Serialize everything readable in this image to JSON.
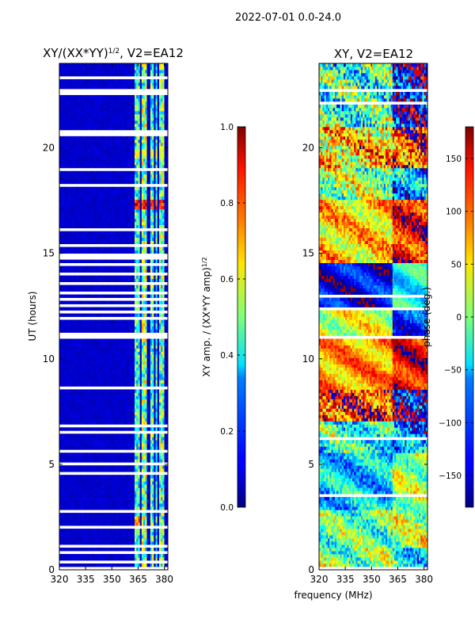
{
  "suptitle": "2022-07-01 0.0-24.0",
  "xlabel": "frequency (MHz)",
  "ylabel": "UT (hours)",
  "left_panel": {
    "title_main": "XY/(XX*YY)",
    "title_sup": "1/2",
    "title_tail": ", V2=EA12"
  },
  "right_panel": {
    "title": "XY, V2=EA12"
  },
  "colorbar_amp": {
    "label_main": "XY amp. / (XX*YY amp)",
    "label_sup": "1/2"
  },
  "colorbar_phase": {
    "label": "phase (deg.)"
  },
  "colors": {
    "jet_low": "#00007f",
    "jet_high": "#7f0000",
    "gap": "#ffffff"
  },
  "chart_data": [
    {
      "type": "heatmap",
      "name": "amplitude-ratio",
      "title": "XY/(XX*YY)^1/2, V2=EA12",
      "xlabel": "",
      "ylabel": "UT (hours)",
      "xlim": [
        320,
        382
      ],
      "ylim": [
        0,
        24
      ],
      "x_ticks": [
        320,
        335,
        350,
        365,
        380
      ],
      "y_ticks": [
        0,
        5,
        10,
        15,
        20
      ],
      "colorbar": {
        "label": "XY amp. / (XX*YY amp)^1/2",
        "range": [
          0.0,
          1.0
        ],
        "ticks": [
          0.0,
          0.2,
          0.4,
          0.6,
          0.8,
          1.0
        ],
        "tick_labels": [
          "0.0",
          "0.2",
          "0.4",
          "0.6",
          "0.8",
          "1.0"
        ]
      },
      "colormap": "jet",
      "background_value": 0.05,
      "channel_bands_mhz": [
        {
          "from": 363.5,
          "to": 366.0,
          "value": 0.42
        },
        {
          "from": 367.0,
          "to": 370.0,
          "value": 0.5
        },
        {
          "from": 372.0,
          "to": 374.0,
          "value": 0.45
        },
        {
          "from": 375.0,
          "to": 376.5,
          "value": 0.4
        },
        {
          "from": 377.5,
          "to": 380.0,
          "value": 0.48
        }
      ],
      "hot_spots": [
        {
          "ut": 17.3,
          "freq_from": 363.5,
          "freq_to": 380.0,
          "value": 0.88
        },
        {
          "ut": 19.7,
          "freq_from": 363.5,
          "freq_to": 380.0,
          "value": 0.62
        },
        {
          "ut": 2.3,
          "freq_from": 363.5,
          "freq_to": 366.0,
          "value": 0.75
        }
      ],
      "flagged_ut_intervals": [
        [
          0.0,
          0.12
        ],
        [
          0.35,
          0.5
        ],
        [
          0.75,
          0.85
        ],
        [
          1.1,
          1.18
        ],
        [
          1.45,
          1.55
        ],
        [
          2.0,
          2.12
        ],
        [
          2.7,
          2.78
        ],
        [
          3.4,
          3.45
        ],
        [
          3.75,
          3.8
        ],
        [
          4.2,
          4.25
        ],
        [
          4.55,
          4.62
        ],
        [
          4.8,
          4.85
        ],
        [
          5.0,
          5.06
        ],
        [
          5.25,
          5.3
        ],
        [
          5.6,
          5.66
        ],
        [
          5.95,
          6.0
        ],
        [
          6.25,
          6.3
        ],
        [
          6.5,
          6.55
        ],
        [
          6.8,
          6.86
        ],
        [
          7.05,
          7.1
        ],
        [
          7.3,
          7.35
        ],
        [
          7.6,
          7.65
        ],
        [
          7.9,
          7.95
        ],
        [
          8.5,
          8.75
        ],
        [
          9.6,
          9.66
        ],
        [
          10.95,
          11.2
        ],
        [
          11.9,
          11.95
        ],
        [
          12.2,
          12.25
        ],
        [
          12.5,
          12.55
        ],
        [
          12.8,
          12.85
        ],
        [
          13.0,
          13.15
        ],
        [
          13.3,
          13.35
        ],
        [
          13.55,
          13.6
        ],
        [
          14.0,
          14.05
        ],
        [
          14.45,
          14.5
        ],
        [
          14.7,
          14.78
        ],
        [
          14.9,
          14.95
        ],
        [
          15.35,
          15.4
        ],
        [
          16.1,
          16.15
        ],
        [
          17.55,
          17.62
        ],
        [
          17.95,
          18.0
        ],
        [
          18.2,
          18.25
        ],
        [
          18.45,
          18.5
        ],
        [
          18.7,
          18.75
        ],
        [
          18.95,
          19.0
        ],
        [
          20.55,
          20.65
        ],
        [
          20.75,
          20.85
        ],
        [
          22.55,
          22.75
        ],
        [
          23.3,
          23.36
        ]
      ]
    },
    {
      "type": "heatmap",
      "name": "phase",
      "title": "XY, V2=EA12",
      "xlabel": "frequency (MHz)",
      "ylabel": "",
      "xlim": [
        320,
        382
      ],
      "ylim": [
        0,
        24
      ],
      "x_ticks": [
        320,
        335,
        350,
        365,
        380
      ],
      "y_ticks": [
        0,
        5,
        10,
        15,
        20
      ],
      "colorbar": {
        "label": "phase (deg.)",
        "range": [
          -180,
          180
        ],
        "ticks": [
          -150,
          -100,
          -50,
          0,
          50,
          100,
          150
        ],
        "tick_labels": [
          "−150",
          "−100",
          "−50",
          "0",
          "50",
          "100",
          "150"
        ]
      },
      "colormap": "jet",
      "ut_segments": [
        {
          "from": 0.0,
          "to": 1.0,
          "phase": 0,
          "spread": 120,
          "high_freq_phase": -40
        },
        {
          "from": 1.0,
          "to": 2.8,
          "phase": -10,
          "spread": 110,
          "high_freq_phase": 20
        },
        {
          "from": 2.8,
          "to": 5.5,
          "phase": -60,
          "spread": 90,
          "high_freq_phase": 10
        },
        {
          "from": 5.5,
          "to": 7.0,
          "phase": -30,
          "spread": 140,
          "high_freq_phase": -90
        },
        {
          "from": 7.0,
          "to": 8.5,
          "phase": 120,
          "spread": 160,
          "high_freq_phase": -150
        },
        {
          "from": 8.5,
          "to": 11.0,
          "phase": 80,
          "spread": 60,
          "high_freq_phase": 140
        },
        {
          "from": 11.0,
          "to": 12.3,
          "phase": 30,
          "spread": 70,
          "high_freq_phase": -120
        },
        {
          "from": 12.3,
          "to": 14.5,
          "phase": -140,
          "spread": 40,
          "high_freq_phase": -40
        },
        {
          "from": 14.5,
          "to": 17.5,
          "phase": 60,
          "spread": 90,
          "high_freq_phase": 130
        },
        {
          "from": 17.5,
          "to": 19.0,
          "phase": 10,
          "spread": 150,
          "high_freq_phase": -80
        },
        {
          "from": 19.0,
          "to": 21.0,
          "phase": 60,
          "spread": 170,
          "high_freq_phase": 120
        },
        {
          "from": 21.0,
          "to": 24.0,
          "phase": -20,
          "spread": 170,
          "high_freq_phase": -140
        }
      ],
      "flagged_ut_intervals": [
        [
          0.0,
          0.1
        ],
        [
          0.4,
          0.48
        ],
        [
          1.3,
          1.36
        ],
        [
          2.05,
          2.1
        ],
        [
          2.8,
          2.85
        ],
        [
          3.5,
          3.55
        ],
        [
          4.3,
          4.35
        ],
        [
          5.5,
          5.58
        ],
        [
          6.2,
          6.26
        ],
        [
          6.9,
          6.95
        ],
        [
          8.5,
          8.6
        ],
        [
          10.2,
          10.26
        ],
        [
          11.0,
          11.1
        ],
        [
          12.3,
          12.38
        ],
        [
          12.95,
          13.0
        ],
        [
          13.35,
          13.42
        ],
        [
          14.5,
          14.58
        ],
        [
          15.6,
          15.65
        ],
        [
          17.5,
          17.56
        ],
        [
          18.3,
          18.36
        ],
        [
          18.6,
          18.66
        ],
        [
          20.85,
          20.9
        ],
        [
          22.1,
          22.16
        ],
        [
          22.7,
          22.76
        ],
        [
          23.4,
          23.45
        ]
      ]
    }
  ]
}
